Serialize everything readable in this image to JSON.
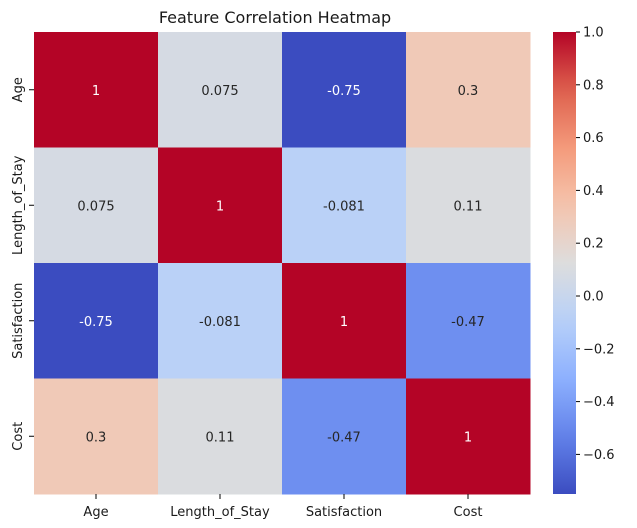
{
  "chart_data": {
    "type": "heatmap",
    "title": "Feature Correlation Heatmap",
    "x_labels": [
      "Age",
      "Length_of_Stay",
      "Satisfaction",
      "Cost"
    ],
    "y_labels": [
      "Age",
      "Length_of_Stay",
      "Satisfaction",
      "Cost"
    ],
    "values": [
      [
        1,
        0.075,
        -0.75,
        0.3
      ],
      [
        0.075,
        1,
        -0.081,
        0.11
      ],
      [
        -0.75,
        -0.081,
        1,
        -0.47
      ],
      [
        0.3,
        0.11,
        -0.47,
        1
      ]
    ],
    "annotations": [
      [
        "1",
        "0.075",
        "-0.75",
        "0.3"
      ],
      [
        "0.075",
        "1",
        "-0.081",
        "0.11"
      ],
      [
        "-0.75",
        "-0.081",
        "1",
        "-0.47"
      ],
      [
        "0.3",
        "0.11",
        "-0.47",
        "1"
      ]
    ],
    "colormap": "coolwarm",
    "colorbar": {
      "vmin": -0.75,
      "vmax": 1.0,
      "ticks": [
        1.0,
        0.8,
        0.6,
        0.4,
        0.2,
        0.0,
        -0.2,
        -0.4,
        -0.6
      ],
      "tick_labels": [
        "1.0",
        "0.8",
        "0.6",
        "0.4",
        "0.2",
        "0.0",
        "−0.2",
        "−0.4",
        "−0.6"
      ]
    }
  }
}
